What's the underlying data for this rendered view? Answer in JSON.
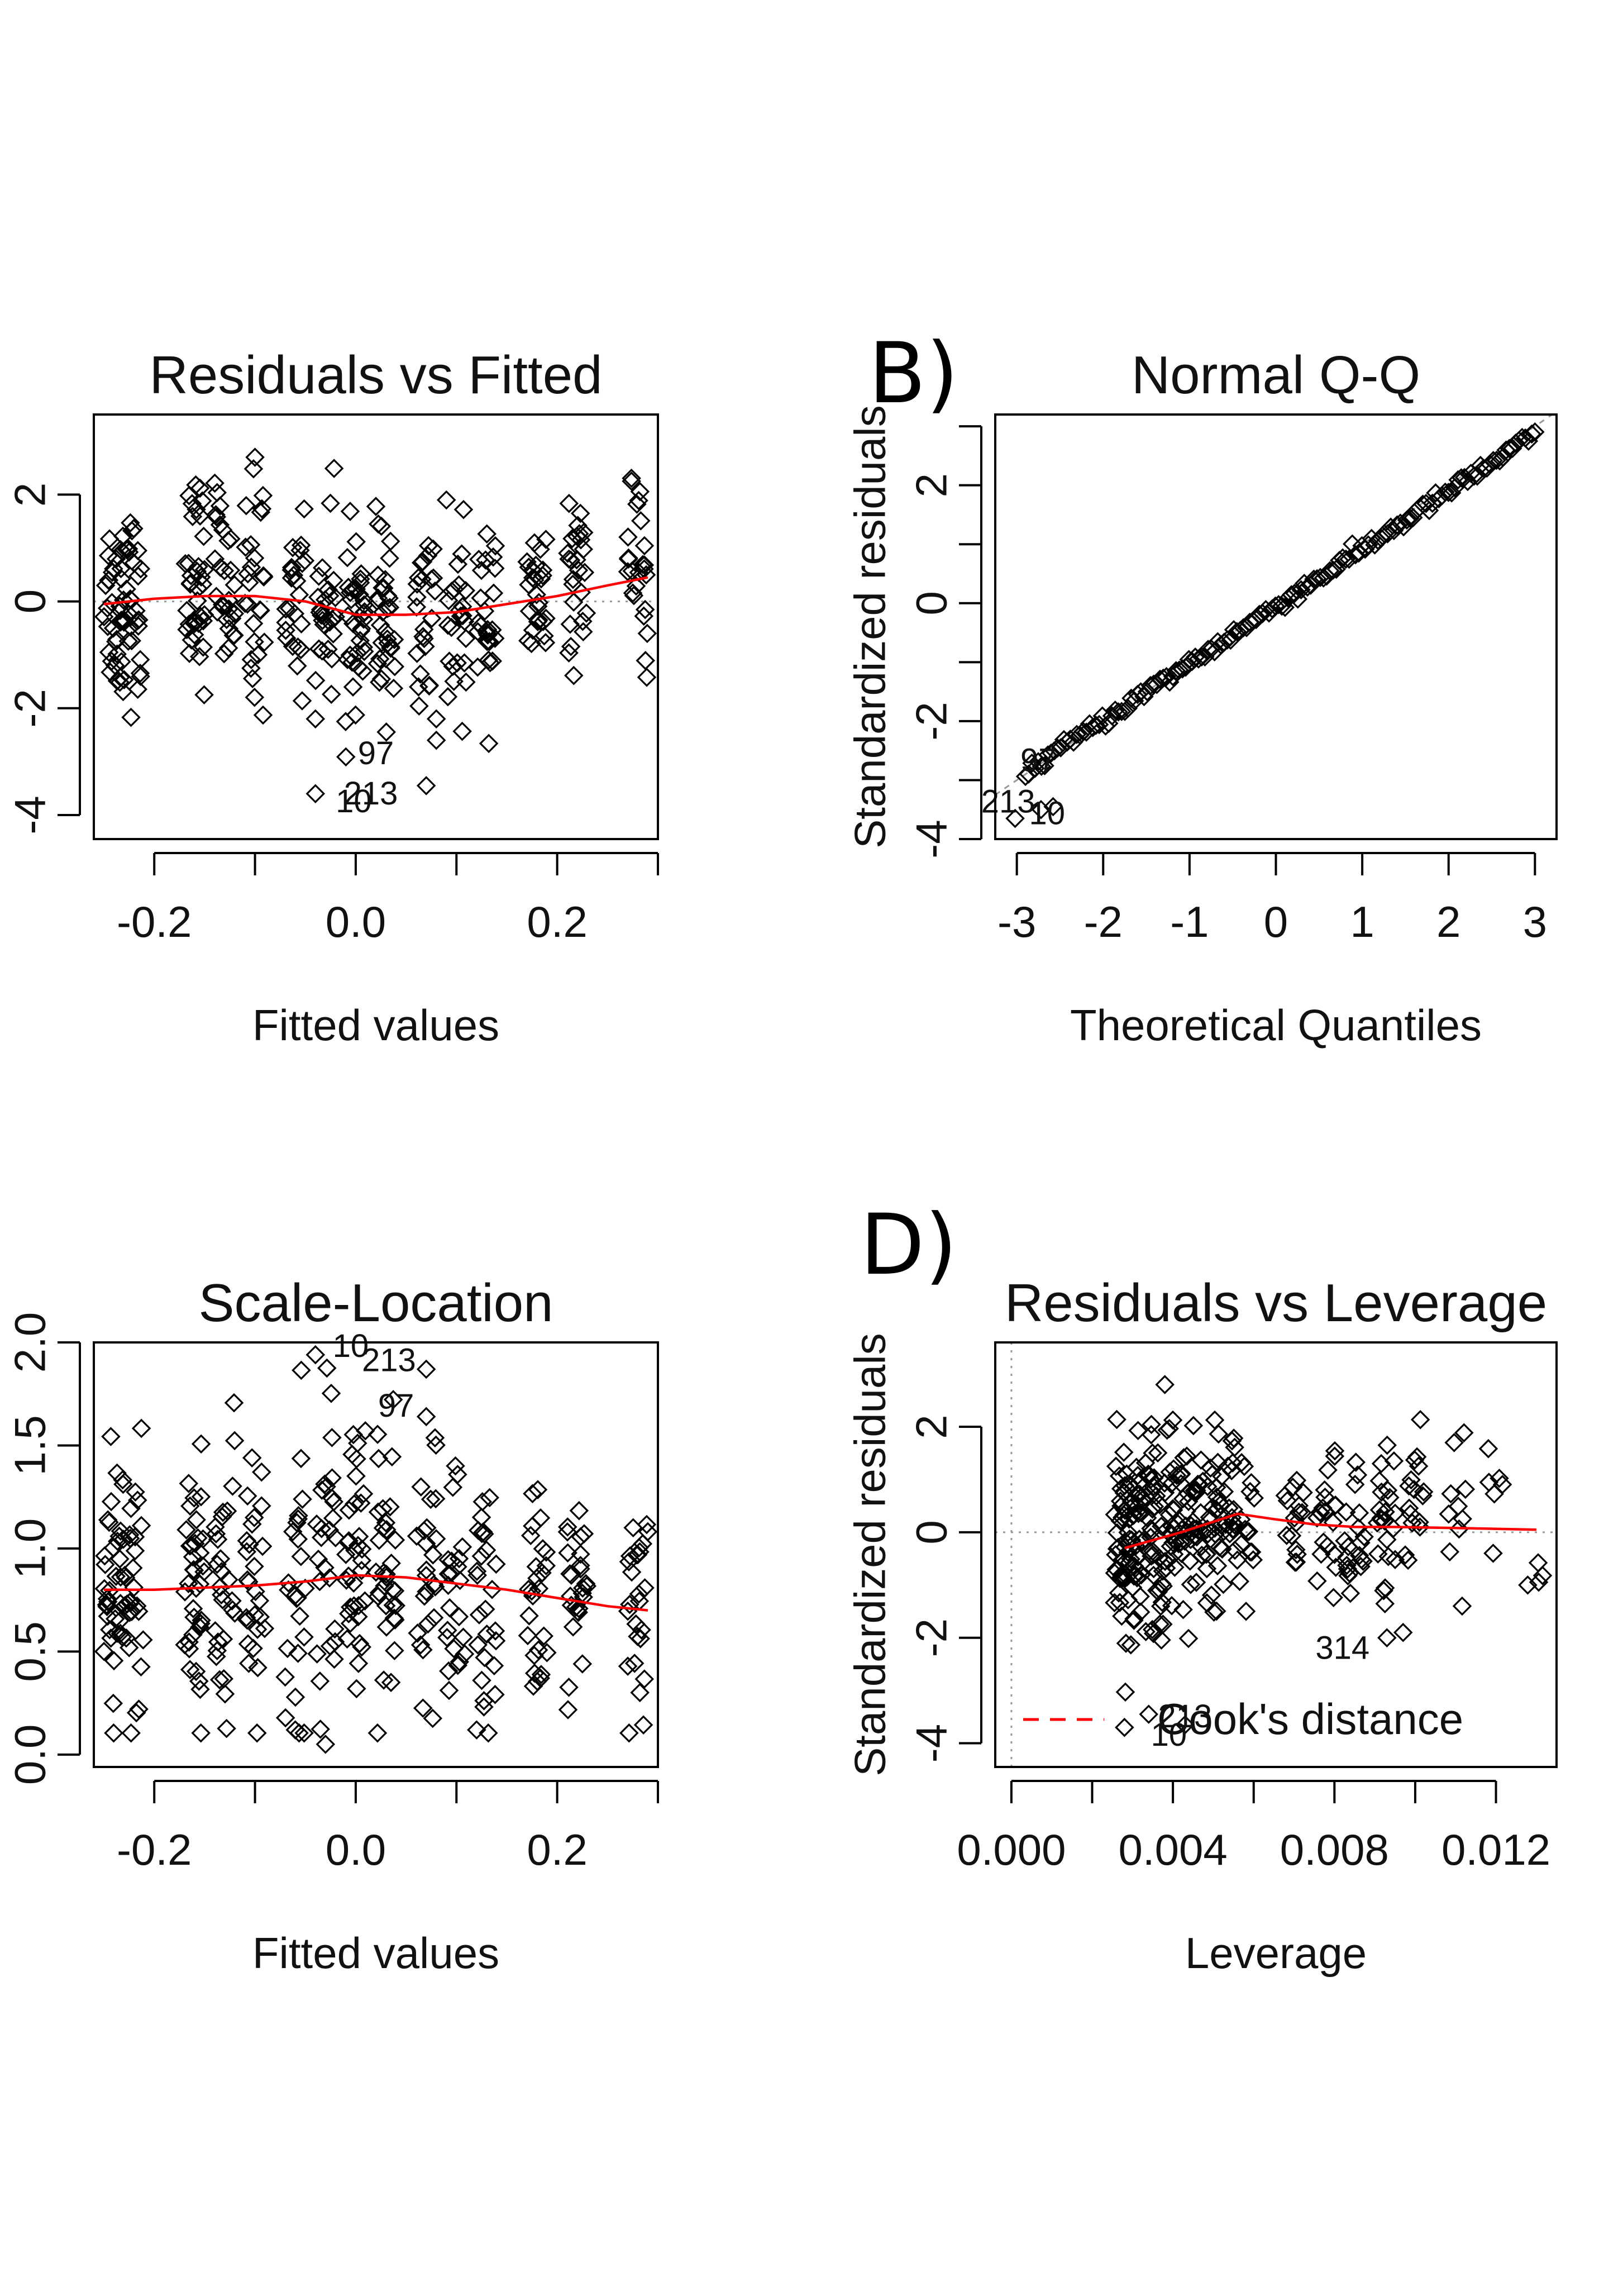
{
  "chart_data": [
    {
      "panel": "",
      "type": "scatter",
      "title": "Residuals vs Fitted",
      "xlabel": "Fitted values",
      "ylabel": "",
      "xlim": [
        -0.26,
        0.3
      ],
      "ylim": [
        -4.45,
        3.5
      ],
      "xticks": [
        -0.2,
        -0.1,
        0.0,
        0.1,
        0.2,
        0.3
      ],
      "xtick_labels": [
        "-0.2",
        "",
        "0.0",
        "",
        "0.2",
        ""
      ],
      "yticks": [
        -4,
        -2,
        0,
        2
      ],
      "ytick_labels": [
        "-4",
        "-2",
        "0",
        "2"
      ],
      "series": [
        {
          "kind": "points",
          "marker": "diamond-open",
          "color": "#000000",
          "groups": [
            {
              "x": -0.24,
              "n": 36,
              "mean": 0.0,
              "sd": 0.95
            },
            {
              "x": -0.22,
              "n": 28,
              "mean": 0.0,
              "sd": 0.9
            },
            {
              "x": -0.16,
              "n": 36,
              "mean": 0.4,
              "sd": 0.95
            },
            {
              "x": -0.13,
              "n": 28,
              "mean": 0.2,
              "sd": 0.95
            },
            {
              "x": -0.1,
              "n": 26,
              "mean": 0.2,
              "sd": 1.05
            },
            {
              "x": -0.06,
              "n": 24,
              "mean": 0.1,
              "sd": 0.85
            },
            {
              "x": -0.03,
              "n": 26,
              "mean": -0.1,
              "sd": 0.9
            },
            {
              "x": 0.0,
              "n": 34,
              "mean": -0.3,
              "sd": 0.75
            },
            {
              "x": 0.03,
              "n": 32,
              "mean": -0.4,
              "sd": 0.8
            },
            {
              "x": 0.07,
              "n": 24,
              "mean": -0.5,
              "sd": 1.15
            },
            {
              "x": 0.1,
              "n": 24,
              "mean": -0.5,
              "sd": 0.8
            },
            {
              "x": 0.13,
              "n": 26,
              "mean": -0.2,
              "sd": 0.85
            },
            {
              "x": 0.18,
              "n": 26,
              "mean": 0.0,
              "sd": 0.75
            },
            {
              "x": 0.22,
              "n": 26,
              "mean": 0.3,
              "sd": 0.7
            },
            {
              "x": 0.28,
              "n": 26,
              "mean": 0.5,
              "sd": 0.75
            }
          ],
          "extra_points": [
            [
              -0.04,
              -2.2
            ],
            [
              -0.01,
              -2.25
            ],
            [
              -0.04,
              -3.6
            ],
            [
              0.07,
              -3.45
            ],
            [
              0.08,
              -2.6
            ],
            [
              0.08,
              -2.2
            ],
            [
              0.09,
              1.9
            ],
            [
              -0.1,
              2.7
            ]
          ]
        },
        {
          "kind": "smoother",
          "color": "#ff0000",
          "x": [
            -0.25,
            -0.2,
            -0.15,
            -0.1,
            -0.05,
            0.0,
            0.05,
            0.1,
            0.15,
            0.2,
            0.25,
            0.29
          ],
          "y": [
            -0.05,
            0.05,
            0.1,
            0.1,
            0.0,
            -0.25,
            -0.25,
            -0.2,
            -0.05,
            0.1,
            0.3,
            0.45
          ]
        },
        {
          "kind": "hline",
          "y": 0,
          "style": "dotted",
          "color": "#999999"
        }
      ],
      "point_labels": [
        {
          "text": "97",
          "x": 0.02,
          "y": -3.05
        },
        {
          "text": "213",
          "x": 0.015,
          "y": -3.8
        },
        {
          "text": "10",
          "x": -0.002,
          "y": -3.95
        }
      ]
    },
    {
      "panel": "B)",
      "type": "scatter",
      "title": "Normal Q-Q",
      "xlabel": "Theoretical Quantiles",
      "ylabel": "Standardized residuals",
      "xlim": [
        -3.25,
        3.25
      ],
      "ylim": [
        -4.0,
        3.2
      ],
      "xticks": [
        -3,
        -2,
        -1,
        0,
        1,
        2,
        3
      ],
      "xtick_labels": [
        "-3",
        "-2",
        "-1",
        "0",
        "1",
        "2",
        "3"
      ],
      "yticks": [
        -4,
        -3,
        -2,
        -1,
        0,
        1,
        2,
        3
      ],
      "ytick_labels": [
        "-4",
        "",
        "-2",
        "",
        "0",
        "",
        "2",
        ""
      ],
      "series": [
        {
          "kind": "qq_points",
          "marker": "diamond-open",
          "color": "#000000",
          "n": 160,
          "q_range": [
            -2.9,
            3.0
          ],
          "slope": 0.97,
          "intercept": -0.05
        },
        {
          "kind": "refline",
          "style": "dotted",
          "color": "#999999",
          "slope": 1.0,
          "intercept": 0.0
        }
      ],
      "point_labels": [
        {
          "text": "97",
          "x": -2.75,
          "y": -2.85
        },
        {
          "text": "213",
          "x": -3.1,
          "y": -3.55
        },
        {
          "text": "10",
          "x": -2.65,
          "y": -3.75
        }
      ]
    },
    {
      "panel": "",
      "type": "scatter",
      "title": "Scale-Location",
      "xlabel": "Fitted values",
      "ylabel": "",
      "xlim": [
        -0.26,
        0.3
      ],
      "ylim": [
        -0.06,
        2.0
      ],
      "xticks": [
        -0.2,
        -0.1,
        0.0,
        0.1,
        0.2,
        0.3
      ],
      "xtick_labels": [
        "-0.2",
        "",
        "0.0",
        "",
        "0.2",
        ""
      ],
      "yticks": [
        0.0,
        0.5,
        1.0,
        1.5,
        2.0
      ],
      "ytick_labels": [
        "0.0",
        "0.5",
        "1.0",
        "1.5",
        "2.0"
      ],
      "series": [
        {
          "kind": "points",
          "marker": "diamond-open",
          "color": "#000000",
          "groups": [
            {
              "x": -0.24,
              "n": 36,
              "mean": 0.78,
              "sd": 0.36
            },
            {
              "x": -0.22,
              "n": 28,
              "mean": 0.8,
              "sd": 0.32
            },
            {
              "x": -0.16,
              "n": 36,
              "mean": 0.85,
              "sd": 0.36
            },
            {
              "x": -0.13,
              "n": 28,
              "mean": 0.8,
              "sd": 0.38
            },
            {
              "x": -0.1,
              "n": 26,
              "mean": 0.85,
              "sd": 0.4
            },
            {
              "x": -0.06,
              "n": 24,
              "mean": 0.8,
              "sd": 0.4
            },
            {
              "x": -0.03,
              "n": 26,
              "mean": 0.8,
              "sd": 0.4
            },
            {
              "x": 0.0,
              "n": 34,
              "mean": 0.8,
              "sd": 0.38
            },
            {
              "x": 0.03,
              "n": 32,
              "mean": 0.85,
              "sd": 0.36
            },
            {
              "x": 0.07,
              "n": 24,
              "mean": 0.9,
              "sd": 0.4
            },
            {
              "x": 0.1,
              "n": 24,
              "mean": 0.8,
              "sd": 0.36
            },
            {
              "x": 0.13,
              "n": 26,
              "mean": 0.8,
              "sd": 0.36
            },
            {
              "x": 0.18,
              "n": 26,
              "mean": 0.75,
              "sd": 0.3
            },
            {
              "x": 0.22,
              "n": 26,
              "mean": 0.7,
              "sd": 0.3
            },
            {
              "x": 0.28,
              "n": 26,
              "mean": 0.7,
              "sd": 0.3
            }
          ],
          "extra_points": [
            [
              -0.04,
              1.94
            ],
            [
              0.07,
              1.87
            ],
            [
              0.07,
              1.64
            ],
            [
              -0.03,
              0.05
            ],
            [
              -0.06,
              0.12
            ],
            [
              0.12,
              0.12
            ]
          ]
        },
        {
          "kind": "smoother",
          "color": "#ff0000",
          "x": [
            -0.25,
            -0.2,
            -0.15,
            -0.1,
            -0.05,
            0.0,
            0.05,
            0.1,
            0.15,
            0.2,
            0.25,
            0.29
          ],
          "y": [
            0.8,
            0.8,
            0.81,
            0.82,
            0.84,
            0.87,
            0.86,
            0.83,
            0.8,
            0.76,
            0.72,
            0.7
          ]
        }
      ],
      "point_labels": [
        {
          "text": "10",
          "x": -0.005,
          "y": 1.93
        },
        {
          "text": "213",
          "x": 0.033,
          "y": 1.86
        },
        {
          "text": "97",
          "x": 0.04,
          "y": 1.64
        }
      ]
    },
    {
      "panel": "D)",
      "type": "scatter",
      "title": "Residuals vs Leverage",
      "xlabel": "Leverage",
      "ylabel": "Standardized residuals",
      "xlim": [
        -0.0004,
        0.0135
      ],
      "ylim": [
        -4.45,
        3.6
      ],
      "xticks": [
        0.0,
        0.002,
        0.004,
        0.006,
        0.008,
        0.01,
        0.012
      ],
      "xtick_labels": [
        "0.000",
        "",
        "0.004",
        "",
        "0.008",
        "",
        "0.012"
      ],
      "yticks": [
        -4,
        -2,
        0,
        2
      ],
      "ytick_labels": [
        "-4",
        "-2",
        "0",
        "2"
      ],
      "series": [
        {
          "kind": "points",
          "marker": "diamond-open",
          "color": "#000000",
          "groups": [
            {
              "x": 0.0028,
              "n": 60,
              "mean": -0.2,
              "sd": 1.0
            },
            {
              "x": 0.0033,
              "n": 50,
              "mean": 0.0,
              "sd": 1.0
            },
            {
              "x": 0.0038,
              "n": 40,
              "mean": 0.2,
              "sd": 1.0
            },
            {
              "x": 0.0043,
              "n": 30,
              "mean": 0.1,
              "sd": 0.95
            },
            {
              "x": 0.0048,
              "n": 30,
              "mean": 0.2,
              "sd": 0.9
            },
            {
              "x": 0.0053,
              "n": 34,
              "mean": 0.4,
              "sd": 0.8
            },
            {
              "x": 0.0058,
              "n": 16,
              "mean": 0.2,
              "sd": 0.7
            },
            {
              "x": 0.007,
              "n": 16,
              "mean": 0.2,
              "sd": 0.6
            },
            {
              "x": 0.0078,
              "n": 20,
              "mean": 0.0,
              "sd": 0.7
            },
            {
              "x": 0.0085,
              "n": 20,
              "mean": 0.0,
              "sd": 0.75
            },
            {
              "x": 0.0093,
              "n": 22,
              "mean": 0.1,
              "sd": 0.75
            },
            {
              "x": 0.01,
              "n": 16,
              "mean": 0.3,
              "sd": 0.7
            },
            {
              "x": 0.011,
              "n": 10,
              "mean": 0.4,
              "sd": 0.6
            },
            {
              "x": 0.012,
              "n": 6,
              "mean": 0.6,
              "sd": 0.6
            },
            {
              "x": 0.013,
              "n": 4,
              "mean": -0.3,
              "sd": 0.8
            }
          ],
          "extra_points": [
            [
              0.0038,
              2.8
            ],
            [
              0.0028,
              -3.7
            ],
            [
              0.0034,
              -3.45
            ],
            [
              0.0043,
              -3.65
            ],
            [
              0.0093,
              -2.0
            ],
            [
              0.0097,
              -1.9
            ]
          ]
        },
        {
          "kind": "smoother",
          "color": "#ff0000",
          "x": [
            0.0028,
            0.0035,
            0.0042,
            0.005,
            0.0056,
            0.0065,
            0.0075,
            0.0085,
            0.0095,
            0.011,
            0.013
          ],
          "y": [
            -0.3,
            -0.15,
            0.0,
            0.2,
            0.35,
            0.25,
            0.15,
            0.1,
            0.1,
            0.08,
            0.05
          ]
        },
        {
          "kind": "hline",
          "y": 0,
          "style": "dotted",
          "color": "#999999"
        },
        {
          "kind": "vline",
          "x": 0,
          "style": "dotted",
          "color": "#999999"
        }
      ],
      "legend": {
        "position": "bottom-left",
        "entries": [
          {
            "label": "Cook's distance",
            "style": "dashed",
            "color": "#ff0000"
          }
        ]
      },
      "point_labels": [
        {
          "text": "314",
          "x": 0.0082,
          "y": -2.4
        },
        {
          "text": "10",
          "x": 0.0039,
          "y": -4.05
        },
        {
          "text": "213",
          "x": 0.0043,
          "y": -3.7
        }
      ]
    }
  ]
}
